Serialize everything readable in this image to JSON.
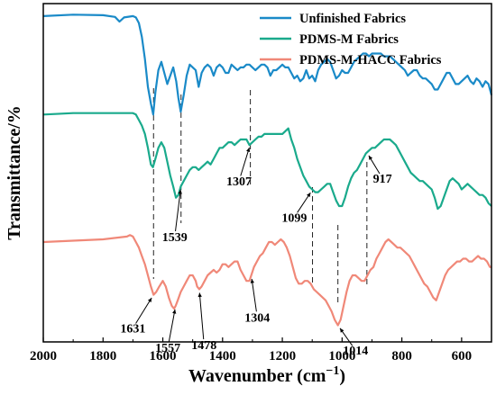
{
  "chart_data": {
    "type": "line",
    "xlabel": "Wavenumber",
    "xlabel_unit": "(cm",
    "xlabel_exp": "−1",
    "xlabel_close": ")",
    "ylabel": "Transmittance/%",
    "xlim": [
      2000,
      500
    ],
    "x_ticks": [
      2000,
      1800,
      1600,
      1400,
      1200,
      1000,
      800,
      600
    ],
    "y_ticks_shown": false,
    "legend_position": "top-right",
    "series": [
      {
        "name": "Unfinished Fabrics",
        "color": "#1a8ac8",
        "x": [
          2000,
          1900,
          1800,
          1760,
          1745,
          1730,
          1700,
          1690,
          1680,
          1670,
          1660,
          1650,
          1640,
          1632,
          1625,
          1615,
          1605,
          1595,
          1585,
          1575,
          1565,
          1555,
          1548,
          1540,
          1530,
          1520,
          1510,
          1500,
          1490,
          1480,
          1470,
          1460,
          1450,
          1440,
          1430,
          1420,
          1410,
          1400,
          1390,
          1380,
          1370,
          1360,
          1350,
          1340,
          1330,
          1320,
          1310,
          1300,
          1290,
          1280,
          1270,
          1260,
          1250,
          1240,
          1230,
          1220,
          1210,
          1200,
          1190,
          1180,
          1170,
          1160,
          1150,
          1140,
          1130,
          1120,
          1110,
          1100,
          1090,
          1080,
          1070,
          1060,
          1050,
          1040,
          1030,
          1020,
          1010,
          1000,
          990,
          980,
          970,
          960,
          950,
          940,
          930,
          920,
          910,
          900,
          890,
          880,
          870,
          860,
          850,
          840,
          830,
          820,
          810,
          800,
          790,
          780,
          770,
          760,
          750,
          740,
          730,
          720,
          710,
          700,
          690,
          680,
          670,
          660,
          650,
          640,
          630,
          620,
          610,
          600,
          590,
          580,
          570,
          560,
          550,
          540,
          530,
          520,
          510,
          500
        ],
        "y": [
          75.5,
          76,
          75.8,
          75.2,
          73.5,
          75,
          75.5,
          75,
          73,
          68,
          60,
          50,
          44,
          40,
          48,
          56,
          59,
          55,
          51,
          54,
          57,
          52,
          46,
          41,
          47,
          54,
          58,
          57,
          56,
          50,
          55,
          57,
          58,
          57,
          54,
          57,
          58,
          57,
          55,
          55,
          58,
          57,
          56,
          57,
          57,
          58,
          58,
          57,
          56,
          57,
          58,
          58,
          57,
          54,
          56,
          56,
          57,
          58,
          57,
          57,
          55,
          53,
          54,
          52,
          53,
          56,
          53,
          54,
          52,
          56,
          58,
          59,
          60,
          59,
          56,
          53,
          54,
          56,
          55,
          55,
          57,
          59,
          60,
          61,
          62,
          62,
          61,
          62,
          62,
          62,
          62,
          61,
          61,
          61,
          60,
          59,
          58,
          57,
          56,
          54,
          55,
          56,
          56,
          54,
          53,
          53,
          52,
          51,
          49,
          49,
          51,
          53,
          55,
          55,
          53,
          51,
          51,
          52,
          53,
          54,
          52,
          51,
          53,
          52,
          50,
          52,
          51,
          47
        ]
      },
      {
        "name": "PDMS-M Fabrics",
        "color": "#1aaa8c",
        "x": [
          2000,
          1900,
          1800,
          1700,
          1690,
          1680,
          1670,
          1660,
          1650,
          1640,
          1633,
          1625,
          1615,
          1605,
          1595,
          1585,
          1575,
          1565,
          1556,
          1548,
          1540,
          1530,
          1520,
          1510,
          1500,
          1490,
          1480,
          1470,
          1460,
          1450,
          1440,
          1430,
          1420,
          1410,
          1400,
          1390,
          1380,
          1370,
          1360,
          1350,
          1340,
          1330,
          1320,
          1310,
          1300,
          1290,
          1280,
          1270,
          1260,
          1250,
          1240,
          1230,
          1220,
          1210,
          1200,
          1190,
          1180,
          1170,
          1160,
          1150,
          1140,
          1130,
          1120,
          1110,
          1100,
          1090,
          1080,
          1070,
          1060,
          1050,
          1040,
          1030,
          1020,
          1010,
          1000,
          990,
          980,
          970,
          960,
          950,
          940,
          930,
          920,
          910,
          900,
          890,
          880,
          870,
          860,
          850,
          840,
          830,
          820,
          810,
          800,
          790,
          780,
          770,
          760,
          750,
          740,
          730,
          720,
          710,
          700,
          690,
          680,
          670,
          660,
          650,
          640,
          630,
          620,
          610,
          600,
          590,
          580,
          570,
          560,
          550,
          540,
          530,
          520,
          510,
          500
        ],
        "y": [
          40,
          40.5,
          40.5,
          40.5,
          40,
          38,
          36,
          33,
          28,
          22,
          21,
          24,
          28,
          30,
          28,
          23,
          18,
          14,
          10,
          11,
          14,
          16,
          18,
          20,
          21,
          21,
          20,
          21,
          22,
          23,
          22,
          24,
          26,
          28,
          28,
          29,
          30,
          30,
          29,
          30,
          31,
          31,
          31,
          29,
          30,
          31,
          32,
          32,
          33,
          33,
          33,
          33,
          33,
          33,
          33,
          34,
          35,
          31,
          28,
          24,
          21,
          18,
          16,
          14,
          13,
          12,
          12,
          13,
          14,
          15,
          15,
          12,
          9,
          7,
          7,
          10,
          14,
          17,
          19,
          20,
          22,
          24,
          26,
          27,
          28,
          28,
          29,
          30,
          31,
          31,
          31,
          30,
          29,
          27,
          25,
          23,
          21,
          19,
          18,
          17,
          16,
          16,
          15,
          14,
          13,
          10,
          6,
          7,
          10,
          13,
          16,
          17,
          16,
          15,
          13,
          14,
          15,
          14,
          13,
          12,
          11,
          11,
          10,
          8,
          7
        ]
      },
      {
        "name": "PDMS-M-HACC Fabrics",
        "color": "#f08878",
        "x": [
          2000,
          1900,
          1800,
          1720,
          1710,
          1700,
          1690,
          1680,
          1670,
          1660,
          1650,
          1640,
          1631,
          1622,
          1612,
          1600,
          1590,
          1580,
          1570,
          1562,
          1557,
          1550,
          1540,
          1530,
          1520,
          1510,
          1500,
          1490,
          1485,
          1478,
          1470,
          1460,
          1450,
          1440,
          1430,
          1420,
          1410,
          1400,
          1390,
          1380,
          1370,
          1360,
          1350,
          1340,
          1330,
          1320,
          1310,
          1304,
          1295,
          1285,
          1275,
          1265,
          1255,
          1245,
          1235,
          1225,
          1215,
          1205,
          1195,
          1185,
          1175,
          1165,
          1155,
          1145,
          1135,
          1125,
          1115,
          1105,
          1095,
          1085,
          1075,
          1065,
          1055,
          1045,
          1035,
          1025,
          1014,
          1005,
          995,
          985,
          975,
          965,
          955,
          945,
          935,
          925,
          915,
          905,
          895,
          885,
          875,
          865,
          855,
          845,
          835,
          825,
          815,
          805,
          795,
          785,
          775,
          765,
          755,
          745,
          735,
          725,
          715,
          705,
          695,
          685,
          675,
          665,
          655,
          645,
          635,
          625,
          615,
          605,
          595,
          585,
          575,
          565,
          555,
          545,
          535,
          525,
          515,
          505,
          500
        ],
        "y": [
          -6,
          -5.5,
          -5,
          -4,
          -3.5,
          -4,
          -6,
          -8,
          -11,
          -14,
          -18,
          -22,
          -25,
          -24,
          -22,
          -20,
          -22,
          -26,
          -29,
          -30,
          -29,
          -27,
          -24,
          -22,
          -20,
          -18,
          -18,
          -20,
          -22,
          -23,
          -22,
          -20,
          -18,
          -17,
          -16,
          -17,
          -16,
          -14,
          -14,
          -15,
          -14,
          -13,
          -13,
          -16,
          -18,
          -20,
          -20,
          -18,
          -15,
          -13,
          -11,
          -10,
          -8,
          -6,
          -6,
          -7,
          -6,
          -5,
          -6,
          -8,
          -11,
          -15,
          -19,
          -21,
          -21,
          -20,
          -20,
          -21,
          -23,
          -24,
          -25,
          -26,
          -27,
          -29,
          -31,
          -34,
          -36,
          -34,
          -29,
          -24,
          -20,
          -18,
          -18,
          -19,
          -20,
          -20,
          -18,
          -16,
          -15,
          -12,
          -10,
          -8,
          -6,
          -5,
          -6,
          -7,
          -8,
          -8,
          -9,
          -10,
          -11,
          -13,
          -15,
          -17,
          -19,
          -21,
          -22,
          -24,
          -26,
          -27,
          -24,
          -21,
          -18,
          -16,
          -15,
          -14,
          -13,
          -13,
          -12,
          -12,
          -13,
          -13,
          -12,
          -11,
          -12,
          -12,
          -13,
          -15,
          -15
        ]
      }
    ],
    "vlines": [
      1631,
      1539,
      1307,
      1099,
      1014,
      917
    ],
    "annotations": [
      {
        "label": "1539",
        "peak": 1539,
        "curve": 1,
        "tx": 1560,
        "ty": -4
      },
      {
        "label": "1307",
        "peak": 1307,
        "curve": 1,
        "tx": 1345,
        "ty": 16
      },
      {
        "label": "1099",
        "peak": 1099,
        "curve": 1,
        "tx": 1160,
        "ty": 3
      },
      {
        "label": "917",
        "peak": 917,
        "curve": 1,
        "tx": 865,
        "ty": 17
      },
      {
        "label": "1631",
        "peak": 1631,
        "curve": 2,
        "tx": 1700,
        "ty": -37
      },
      {
        "label": "1557",
        "peak": 1557,
        "curve": 2,
        "tx": 1583,
        "ty": -44
      },
      {
        "label": "1478",
        "peak": 1478,
        "curve": 2,
        "tx": 1462,
        "ty": -43
      },
      {
        "label": "1304",
        "peak": 1304,
        "curve": 2,
        "tx": 1284,
        "ty": -33
      },
      {
        "label": "1014",
        "peak": 1014,
        "curve": 2,
        "tx": 955,
        "ty": -45
      }
    ]
  }
}
